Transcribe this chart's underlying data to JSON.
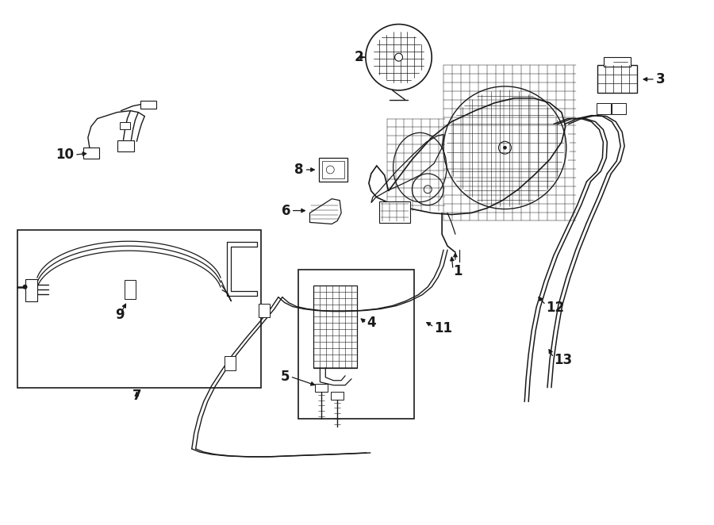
{
  "bg_color": "#ffffff",
  "line_color": "#1a1a1a",
  "fig_width": 9.0,
  "fig_height": 6.62,
  "dpi": 100,
  "label_fontsize": 12
}
